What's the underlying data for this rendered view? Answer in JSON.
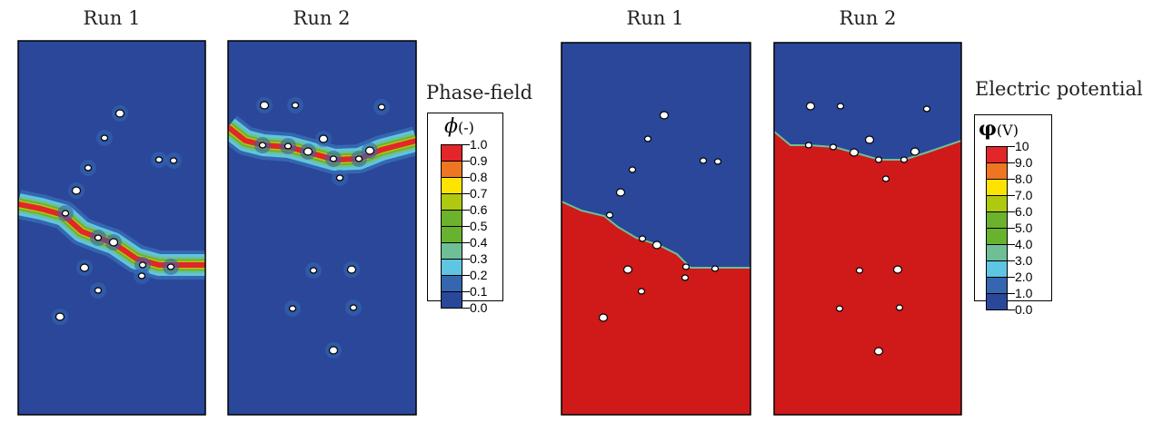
{
  "panel_titles": [
    "Run 1",
    "Run 2",
    "Run 1",
    "Run 2"
  ],
  "phase_legend": {
    "title": "Phase-field",
    "symbol": "ϕ",
    "unit": "(-)",
    "labels": [
      "1.0",
      "0.9",
      "0.8",
      "0.7",
      "0.6",
      "0.5",
      "0.4",
      "0.3",
      "0.2",
      "0.1",
      "0.0"
    ]
  },
  "potential_legend": {
    "title": "Electric potential",
    "symbol": "φ",
    "unit": "(V)",
    "labels": [
      "10",
      "9.0",
      "8.0",
      "7.0",
      "6.0",
      "5.0",
      "4.0",
      "3.0",
      "2.0",
      "1.0",
      "0.0"
    ]
  },
  "colors": [
    "#e2262a",
    "#ee7623",
    "#fde400",
    "#aec90f",
    "#6cb22d",
    "#68b32e",
    "#6fbf96",
    "#5ec5e2",
    "#3566b0",
    "#2a479a"
  ],
  "background_color": "#2a479a",
  "high_color": "#d01a1a"
}
